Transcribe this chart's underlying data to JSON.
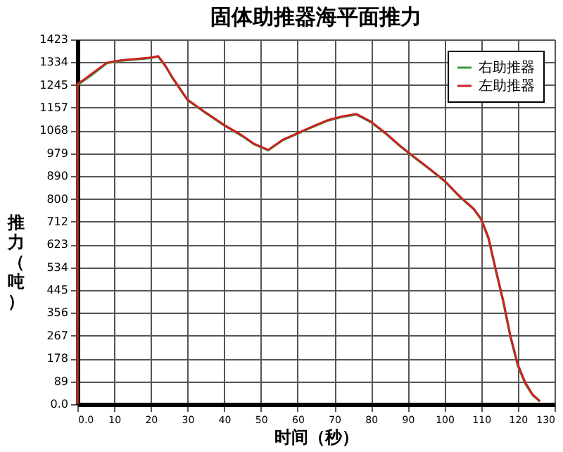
{
  "chart_data": {
    "type": "line",
    "title": "固体助推器海平面推力",
    "xlabel": "时间（秒）",
    "ylabel": "推力（吨）",
    "series": [
      {
        "name": "右助推器",
        "color": "#3a9a3a",
        "x": [
          0,
          0,
          2,
          4,
          8,
          12,
          16,
          20,
          22,
          24,
          26,
          30,
          35,
          40,
          45,
          48,
          52,
          56,
          60,
          64,
          68,
          72,
          76,
          80,
          84,
          88,
          92,
          96,
          100,
          104,
          108,
          110,
          112,
          114,
          116,
          118,
          120,
          122,
          124,
          126
        ],
        "values": [
          0,
          1245,
          1265,
          1285,
          1330,
          1340,
          1345,
          1350,
          1356,
          1318,
          1270,
          1186,
          1135,
          1087,
          1045,
          1015,
          990,
          1030,
          1055,
          1081,
          1105,
          1120,
          1130,
          1100,
          1055,
          1005,
          960,
          916,
          870,
          811,
          760,
          720,
          645,
          520,
          400,
          260,
          149,
          80,
          35,
          10
        ]
      },
      {
        "name": "左助推器",
        "color": "#cc2222",
        "x": [
          0,
          0,
          2,
          4,
          8,
          12,
          16,
          20,
          22,
          24,
          26,
          30,
          35,
          40,
          45,
          48,
          52,
          56,
          60,
          64,
          68,
          72,
          76,
          80,
          84,
          88,
          92,
          96,
          100,
          104,
          108,
          110,
          112,
          114,
          116,
          118,
          120,
          122,
          124,
          126
        ],
        "values": [
          0,
          1250,
          1268,
          1290,
          1332,
          1342,
          1347,
          1352,
          1358,
          1320,
          1272,
          1188,
          1137,
          1089,
          1047,
          1017,
          992,
          1032,
          1057,
          1083,
          1107,
          1122,
          1132,
          1102,
          1057,
          1007,
          962,
          918,
          872,
          813,
          762,
          722,
          650,
          525,
          405,
          265,
          155,
          85,
          38,
          12
        ]
      }
    ],
    "xlim": [
      0,
      130
    ],
    "xticks": [
      {
        "value": 0,
        "label": "0.0"
      },
      10,
      20,
      30,
      40,
      50,
      60,
      70,
      80,
      90,
      100,
      110,
      120,
      130
    ],
    "ylim": [
      0,
      1423
    ],
    "yticks": [
      {
        "value": 0,
        "label": "0.0"
      },
      89,
      178,
      267,
      356,
      445,
      534,
      623,
      712,
      800,
      890,
      979,
      1068,
      1157,
      1245,
      1334,
      1423
    ],
    "grid": true,
    "legend": "top right",
    "marker": "none",
    "line_style": "solid"
  }
}
